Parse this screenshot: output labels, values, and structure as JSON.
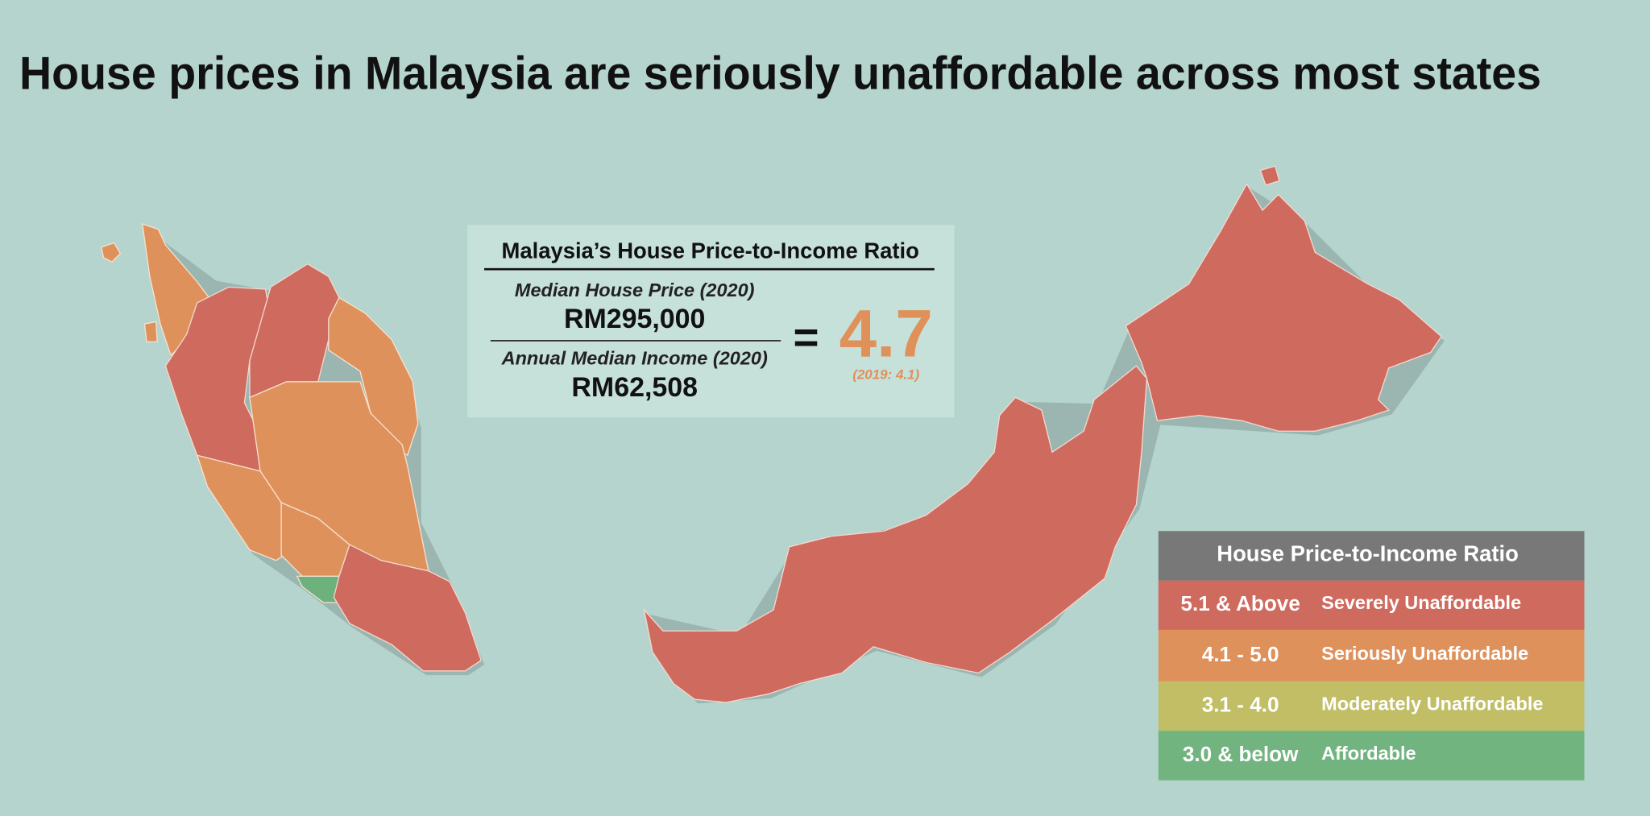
{
  "title": "House prices in Malaysia are seriously unaffordable across most states",
  "ratio_box": {
    "heading": "Malaysia’s House Price-to-Income Ratio",
    "numerator_label": "Median House Price (2020)",
    "numerator_value": "RM295,000",
    "denominator_label": "Annual Median Income (2020)",
    "denominator_value": "RM62,508",
    "equals": "=",
    "result": 4.7,
    "result_color": "#e0915a",
    "previous": "(2019: 4.1)"
  },
  "legend": {
    "title": "House Price-to-Income Ratio",
    "title_color": "#787878",
    "rows": [
      {
        "range": "5.1 & Above",
        "label": "Severely Unaffordable",
        "color": "#cf6a5f"
      },
      {
        "range": "4.1 - 5.0",
        "label": "Seriously Unaffordable",
        "color": "#df915c"
      },
      {
        "range": "3.1 - 4.0",
        "label": "Moderately Unaffordable",
        "color": "#c1be66"
      },
      {
        "range": "3.0 & below",
        "label": "Affordable",
        "color": "#72b47f"
      }
    ]
  }
}
